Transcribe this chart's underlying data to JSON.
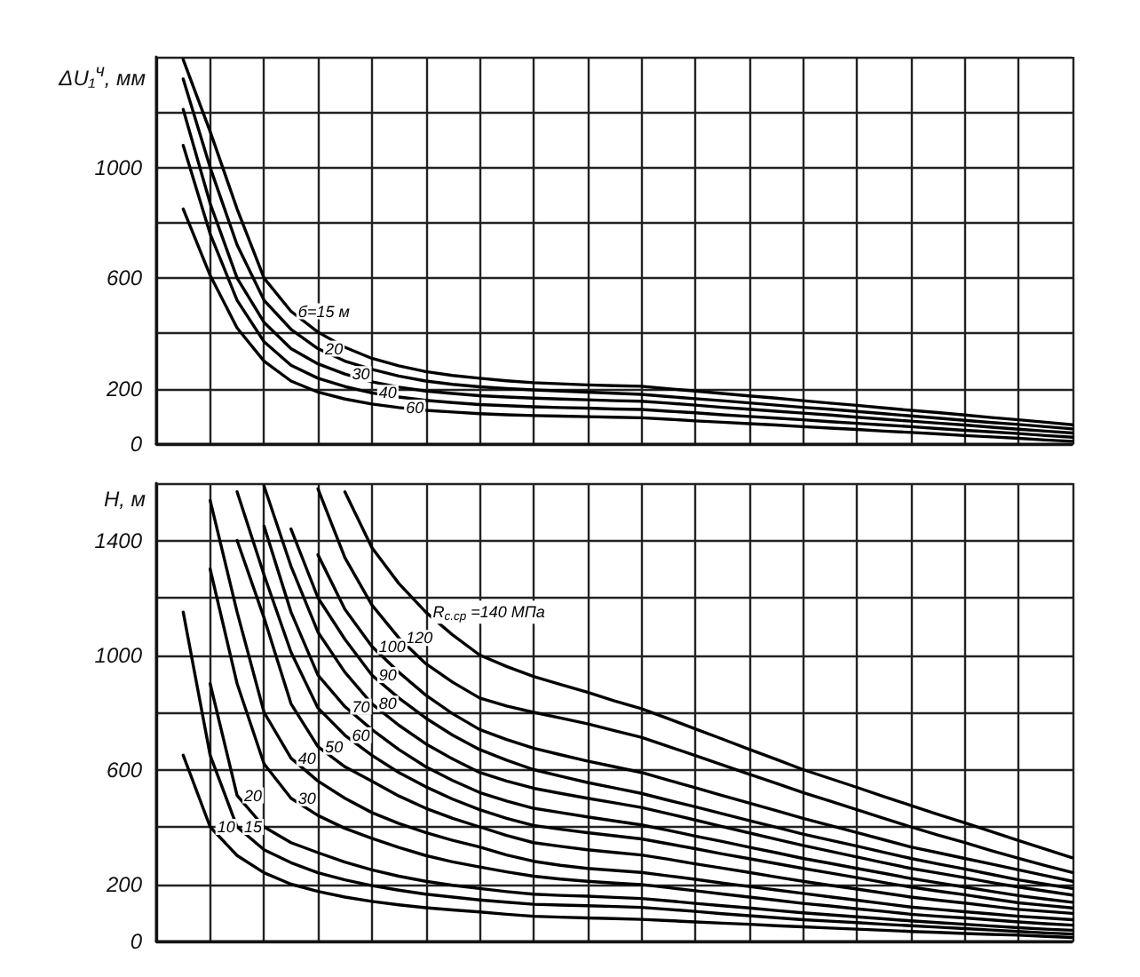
{
  "chart_data": [
    {
      "type": "line",
      "ylabel": "ΔU₁$^{ч}$, мм",
      "categories": [
        null,
        null,
        null,
        null,
        null,
        null,
        null,
        null,
        null,
        null,
        null,
        null,
        null,
        null,
        null,
        null,
        null,
        null,
        null,
        null,
        null,
        null,
        null,
        null,
        null,
        null,
        null,
        null,
        null,
        null,
        null,
        null,
        null,
        null,
        null
      ],
      "ylim": [
        0,
        1400
      ],
      "yticks": [
        0,
        200,
        {
          "value": 400,
          "label": null
        },
        600,
        {
          "value": 800,
          "label": null
        },
        1000,
        {
          "value": 1200,
          "label": null
        },
        {
          "value": 1400,
          "label": null
        }
      ],
      "grid": true,
      "tick_labels": "y",
      "marker": "none",
      "line_style": "solid",
      "series": [
        {
          "name": "б=15 м",
          "color": "#000000",
          "values": [
            null,
            1390,
            1130,
            850,
            600,
            480,
            405,
            350,
            310,
            283,
            262,
            248,
            238,
            229,
            222,
            218,
            214,
            211,
            209,
            200,
            192,
            183,
            174,
            166,
            157,
            148,
            140,
            131,
            122,
            114,
            105,
            96,
            88,
            79,
            70
          ]
        },
        {
          "name": "20",
          "color": "#000000",
          "values": [
            null,
            1320,
            1000,
            720,
            520,
            415,
            345,
            300,
            270,
            246,
            228,
            216,
            207,
            201,
            196,
            192,
            188,
            184,
            180,
            172,
            164,
            157,
            149,
            141,
            133,
            126,
            118,
            110,
            102,
            94,
            86,
            78,
            71,
            63,
            55
          ]
        },
        {
          "name": "30",
          "color": "#000000",
          "values": [
            null,
            1210,
            870,
            600,
            440,
            345,
            290,
            253,
            225,
            206,
            192,
            183,
            175,
            170,
            166,
            163,
            160,
            157,
            155,
            148,
            141,
            133,
            126,
            119,
            112,
            105,
            97,
            90,
            83,
            76,
            69,
            61,
            54,
            47,
            40
          ]
        },
        {
          "name": "40",
          "color": "#000000",
          "values": [
            null,
            1080,
            760,
            520,
            370,
            285,
            238,
            208,
            185,
            170,
            158,
            150,
            143,
            139,
            135,
            132,
            130,
            127,
            125,
            119,
            113,
            106,
            100,
            94,
            88,
            81,
            75,
            69,
            63,
            56,
            50,
            44,
            38,
            31,
            25
          ]
        },
        {
          "name": "60",
          "color": "#000000",
          "values": [
            null,
            850,
            610,
            420,
            300,
            228,
            188,
            163,
            145,
            132,
            122,
            116,
            110,
            106,
            103,
            101,
            99,
            97,
            95,
            90,
            84,
            79,
            74,
            69,
            63,
            58,
            53,
            47,
            42,
            37,
            31,
            26,
            21,
            15,
            10
          ]
        }
      ]
    },
    {
      "type": "line",
      "ylabel": "H, м",
      "categories": [
        null,
        null,
        null,
        null,
        null,
        null,
        null,
        null,
        null,
        null,
        null,
        null,
        null,
        null,
        null,
        null,
        null,
        null,
        null,
        null,
        null,
        null,
        null,
        null,
        null,
        null,
        null,
        null,
        null,
        null,
        null,
        null,
        null,
        null,
        null
      ],
      "ylim": [
        0,
        1600
      ],
      "yticks": [
        0,
        200,
        {
          "value": 400,
          "label": null
        },
        600,
        {
          "value": 800,
          "label": null
        },
        1000,
        {
          "value": 1200,
          "label": null
        },
        1400,
        {
          "value": 1600,
          "label": null
        }
      ],
      "grid": true,
      "tick_labels": "y",
      "marker": "none",
      "line_style": "solid",
      "series": [
        {
          "name": "R$_{с.ср}$ =140 МПа",
          "color": "#000000",
          "values": [
            null,
            null,
            null,
            null,
            null,
            null,
            null,
            1570,
            1375,
            1250,
            1150,
            1070,
            1000,
            960,
            925,
            897,
            870,
            840,
            813,
            778,
            742,
            707,
            671,
            636,
            600,
            569,
            538,
            506,
            475,
            444,
            414,
            383,
            352,
            322,
            292
          ]
        },
        {
          "name": "120",
          "color": "#000000",
          "values": [
            null,
            null,
            null,
            null,
            null,
            null,
            1580,
            1340,
            1175,
            1060,
            970,
            905,
            850,
            822,
            800,
            780,
            760,
            736,
            713,
            681,
            649,
            617,
            584,
            552,
            520,
            490,
            460,
            430,
            400,
            372,
            345,
            317,
            290,
            265,
            241
          ]
        },
        {
          "name": "100",
          "color": "#000000",
          "values": [
            null,
            null,
            null,
            null,
            null,
            null,
            1350,
            1160,
            1030,
            940,
            860,
            795,
            740,
            705,
            675,
            652,
            630,
            610,
            590,
            563,
            537,
            510,
            483,
            457,
            430,
            405,
            380,
            355,
            330,
            310,
            290,
            270,
            250,
            230,
            210
          ]
        },
        {
          "name": "90",
          "color": "#000000",
          "values": [
            null,
            null,
            null,
            null,
            null,
            1440,
            1200,
            1055,
            930,
            850,
            780,
            720,
            670,
            633,
            600,
            577,
            555,
            536,
            517,
            493,
            470,
            446,
            422,
            399,
            375,
            354,
            333,
            311,
            290,
            271,
            253,
            234,
            215,
            200,
            185
          ]
        },
        {
          "name": "80",
          "color": "#000000",
          "values": [
            null,
            null,
            null,
            null,
            1590,
            1310,
            1080,
            940,
            830,
            755,
            690,
            637,
            590,
            560,
            535,
            517,
            500,
            484,
            468,
            446,
            424,
            401,
            379,
            357,
            335,
            315,
            295,
            275,
            255,
            239,
            223,
            206,
            190,
            176,
            162
          ]
        },
        {
          "name": "70",
          "color": "#000000",
          "values": [
            null,
            null,
            null,
            null,
            1450,
            1150,
            930,
            820,
            740,
            670,
            610,
            562,
            520,
            490,
            465,
            450,
            435,
            421,
            407,
            388,
            368,
            349,
            329,
            310,
            290,
            273,
            255,
            238,
            220,
            205,
            190,
            175,
            160,
            148,
            137
          ]
        },
        {
          "name": "60",
          "color": "#000000",
          "values": [
            null,
            null,
            null,
            1570,
            1280,
            1010,
            815,
            720,
            650,
            590,
            540,
            497,
            460,
            430,
            405,
            392,
            380,
            369,
            358,
            341,
            324,
            306,
            289,
            272,
            255,
            239,
            223,
            206,
            190,
            176,
            163,
            149,
            135,
            126,
            117
          ]
        },
        {
          "name": "50",
          "color": "#000000",
          "values": [
            null,
            null,
            null,
            1400,
            1130,
            830,
            680,
            610,
            560,
            508,
            465,
            430,
            400,
            370,
            345,
            332,
            320,
            311,
            302,
            287,
            271,
            256,
            241,
            225,
            210,
            196,
            183,
            169,
            155,
            144,
            134,
            123,
            112,
            105,
            98
          ]
        },
        {
          "name": "40",
          "color": "#000000",
          "values": [
            null,
            null,
            1540,
            1150,
            800,
            640,
            560,
            500,
            450,
            412,
            380,
            353,
            330,
            302,
            280,
            266,
            255,
            248,
            241,
            229,
            217,
            204,
            192,
            180,
            168,
            156,
            144,
            132,
            120,
            112,
            104,
            96,
            88,
            82,
            76
          ]
        },
        {
          "name": "30",
          "color": "#000000",
          "values": [
            null,
            null,
            1300,
            900,
            620,
            500,
            440,
            395,
            360,
            328,
            300,
            278,
            260,
            243,
            228,
            218,
            210,
            204,
            199,
            188,
            177,
            166,
            155,
            144,
            133,
            124,
            114,
            105,
            95,
            88,
            82,
            75,
            68,
            62,
            57
          ]
        },
        {
          "name": "20",
          "color": "#000000",
          "values": [
            null,
            null,
            900,
            510,
            400,
            345,
            310,
            277,
            250,
            228,
            210,
            196,
            185,
            174,
            165,
            161,
            158,
            154,
            150,
            142,
            133,
            125,
            117,
            108,
            100,
            93,
            86,
            79,
            72,
            66,
            60,
            54,
            48,
            43,
            39
          ]
        },
        {
          "name": "15",
          "color": "#000000",
          "values": [
            null,
            1150,
            650,
            400,
            320,
            275,
            240,
            215,
            195,
            179,
            165,
            155,
            145,
            137,
            130,
            127,
            125,
            122,
            119,
            112,
            105,
            97,
            90,
            83,
            76,
            71,
            66,
            60,
            55,
            50,
            45,
            40,
            35,
            30,
            26
          ]
        },
        {
          "name": "10",
          "color": "#000000",
          "values": [
            null,
            650,
            400,
            300,
            240,
            200,
            175,
            155,
            140,
            128,
            118,
            110,
            103,
            95,
            88,
            85,
            82,
            80,
            77,
            73,
            68,
            64,
            60,
            55,
            51,
            47,
            43,
            39,
            35,
            32,
            28,
            25,
            22,
            18,
            14
          ]
        }
      ]
    }
  ]
}
